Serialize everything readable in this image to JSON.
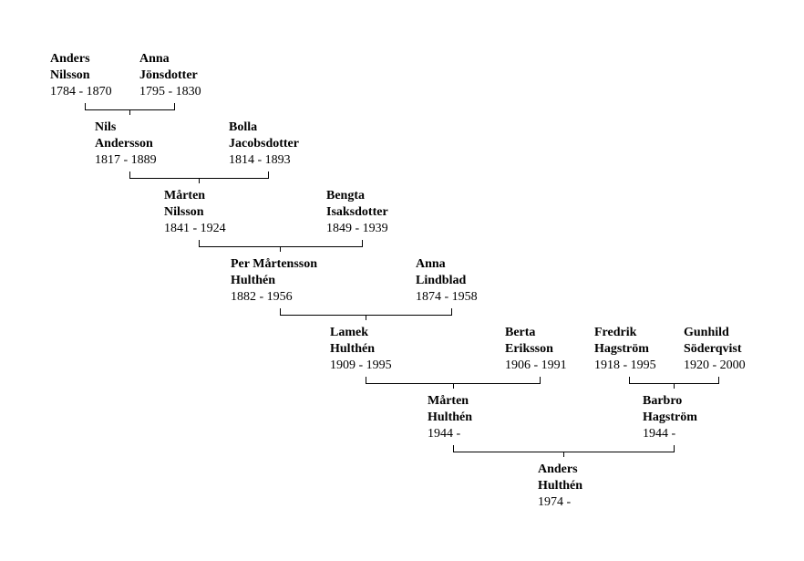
{
  "persons": [
    {
      "given": "Anders",
      "surname": "Nilsson",
      "years": "1784 - 1870"
    },
    {
      "given": "Anna",
      "surname": "Jönsdotter",
      "years": "1795 - 1830"
    },
    {
      "given": "Nils",
      "surname": "Andersson",
      "years": "1817 - 1889"
    },
    {
      "given": "Bolla",
      "surname": "Jacobsdotter",
      "years": "1814 - 1893"
    },
    {
      "given": "Mårten",
      "surname": "Nilsson",
      "years": "1841 - 1924"
    },
    {
      "given": "Bengta",
      "surname": "Isaksdotter",
      "years": "1849 - 1939"
    },
    {
      "given": "Per Mårtensson",
      "surname": "Hulthén",
      "years": "1882 - 1956"
    },
    {
      "given": "Anna",
      "surname": "Lindblad",
      "years": "1874 - 1958"
    },
    {
      "given": "Lamek",
      "surname": "Hulthén",
      "years": "1909 - 1995"
    },
    {
      "given": "Berta",
      "surname": "Eriksson",
      "years": "1906 - 1991"
    },
    {
      "given": "Fredrik",
      "surname": "Hagström",
      "years": "1918 - 1995"
    },
    {
      "given": "Gunhild",
      "surname": "Söderqvist",
      "years": "1920 - 2000"
    },
    {
      "given": "Mårten",
      "surname": "Hulthén",
      "years": "1944 -"
    },
    {
      "given": "Barbro",
      "surname": "Hagström",
      "years": "1944 -"
    },
    {
      "given": "Anders",
      "surname": "Hulthén",
      "years": "1974 -"
    }
  ]
}
